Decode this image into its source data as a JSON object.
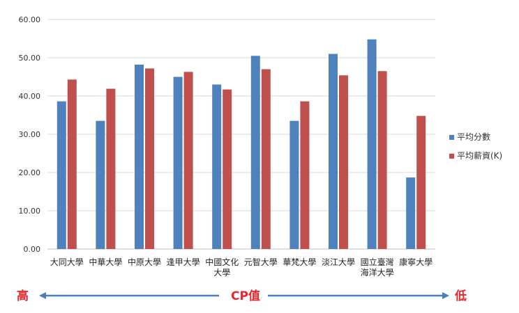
{
  "chart_data": {
    "type": "bar",
    "categories": [
      [
        "大同大學"
      ],
      [
        "中華大學"
      ],
      [
        "中原大學"
      ],
      [
        "逢甲大學"
      ],
      [
        "中國文化",
        "大學"
      ],
      [
        "元智大學"
      ],
      [
        "華梵大學"
      ],
      [
        "淡江大學"
      ],
      [
        "國立臺灣",
        "海洋大學"
      ],
      [
        "康寧大學"
      ]
    ],
    "series": [
      {
        "name": "平均分數",
        "color": "#4f81bd",
        "values": [
          38.6,
          33.5,
          48.2,
          45.0,
          43.0,
          50.5,
          33.5,
          51.0,
          54.8,
          18.7
        ]
      },
      {
        "name": "平均薪資(K)",
        "color": "#c0504d",
        "values": [
          44.3,
          41.9,
          47.2,
          46.3,
          41.7,
          47.0,
          38.6,
          45.4,
          46.5,
          34.8
        ]
      }
    ],
    "ylim": [
      0,
      60
    ],
    "yticks": [
      "0.00",
      "10.00",
      "20.00",
      "30.00",
      "40.00",
      "50.00",
      "60.00"
    ],
    "grid": true,
    "legend_position": "right"
  },
  "annotation": {
    "left": "高",
    "center": "CP值",
    "right": "低",
    "text_color": "#e8262b",
    "arrow_color": "#4a7ebb"
  }
}
